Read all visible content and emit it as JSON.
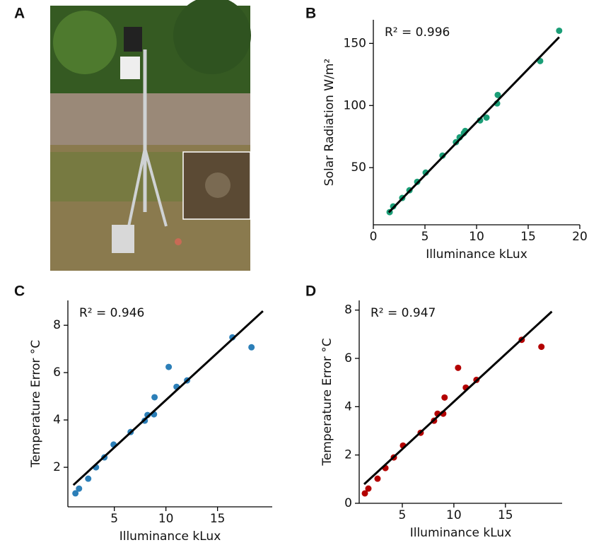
{
  "photo_panel": "A",
  "chart_data": [
    {
      "type": "scatter",
      "panel": "B",
      "annotation": "R² = 0.996",
      "xlabel": "Illuminance kLux",
      "ylabel": "Solar Radiation W/m²",
      "color": "#1b9e77",
      "fit_color": "#000000",
      "x": [
        1.58,
        1.92,
        2.8,
        3.5,
        4.25,
        5.07,
        6.7,
        8.0,
        8.36,
        8.77,
        8.9,
        10.34,
        10.96,
        11.99,
        12.05,
        16.16,
        18.0
      ],
      "y": [
        14.2,
        18.8,
        25.6,
        31.8,
        38.6,
        46,
        59.7,
        70.5,
        74.4,
        77.8,
        79.5,
        88,
        90.3,
        101.7,
        108.5,
        135.8,
        160.2
      ],
      "fit": {
        "x": [
          1.5,
          18
        ],
        "y": [
          14,
          155
        ]
      },
      "xlim": [
        0,
        20
      ],
      "ylim": [
        4,
        169
      ],
      "xticks": [
        0,
        5,
        10,
        15,
        20
      ],
      "yticks": [
        50,
        100,
        150
      ]
    },
    {
      "type": "scatter",
      "panel": "C",
      "annotation": "R² = 0.946",
      "xlabel": "Illuminance kLux",
      "ylabel": "Temperature Error °C",
      "color": "#2c7fb8",
      "fit_color": "#000000",
      "x": [
        1.23,
        1.58,
        2.47,
        3.22,
        4.04,
        4.93,
        6.58,
        7.95,
        8.22,
        8.84,
        8.9,
        10.27,
        11.03,
        12.05,
        16.44,
        18.29
      ],
      "y": [
        0.9,
        1.1,
        1.52,
        2.0,
        2.42,
        2.96,
        3.49,
        3.97,
        4.21,
        4.24,
        4.96,
        6.24,
        5.4,
        5.67,
        7.49,
        7.07
      ],
      "fit": {
        "x": [
          1.03,
          19.4
        ],
        "y": [
          1.25,
          8.6
        ]
      },
      "xlim": [
        0.5,
        20.3
      ],
      "ylim": [
        0.33,
        9.05
      ],
      "xticks": [
        5,
        10,
        15
      ],
      "yticks": [
        2,
        4,
        6,
        8
      ]
    },
    {
      "type": "scatter",
      "panel": "D",
      "annotation": "R² = 0.947",
      "xlabel": "Illuminance kLux",
      "ylabel": "Temperature Error °C",
      "color": "#b30000",
      "fit_color": "#000000",
      "x": [
        1.37,
        1.71,
        2.6,
        3.36,
        4.18,
        5.07,
        6.78,
        8.08,
        8.42,
        8.97,
        9.1,
        10.41,
        11.16,
        12.19,
        16.58,
        18.49
      ],
      "y": [
        0.41,
        0.61,
        1.02,
        1.46,
        1.9,
        2.39,
        2.92,
        3.42,
        3.71,
        3.71,
        4.38,
        5.61,
        4.79,
        5.11,
        6.77,
        6.48
      ],
      "fit": {
        "x": [
          1.3,
          19.5
        ],
        "y": [
          0.79,
          7.94
        ]
      },
      "xlim": [
        0.82,
        20.5
      ],
      "ylim": [
        0,
        8.4
      ],
      "xticks": [
        5,
        10,
        15
      ],
      "yticks": [
        0,
        2,
        4,
        6,
        8
      ]
    }
  ]
}
